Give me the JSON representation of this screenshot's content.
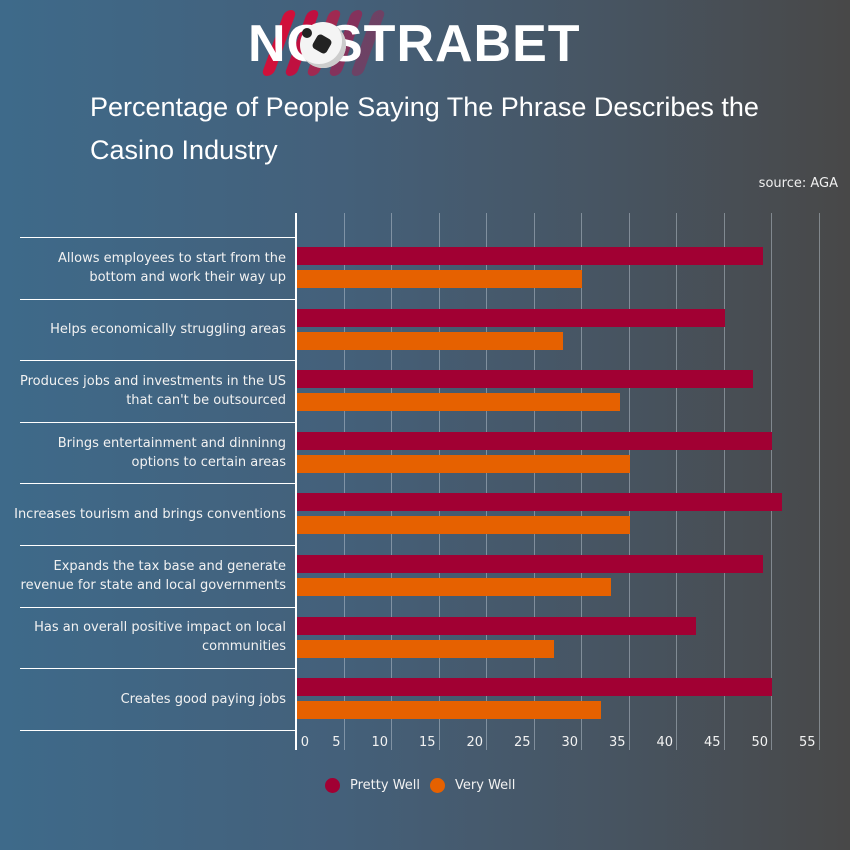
{
  "brand": {
    "logo_text": "NOSTRABET"
  },
  "header": {
    "title": "Percentage of People Saying The Phrase Describes the Casino Industry",
    "source": "source: AGA"
  },
  "colors": {
    "pretty_well": "#a10033",
    "very_well": "#e66100",
    "axis": "#ffffff"
  },
  "legend": [
    {
      "label": "Pretty Well",
      "color": "#a10033"
    },
    {
      "label": "Very Well",
      "color": "#e66100"
    }
  ],
  "chart_data": {
    "type": "bar",
    "orientation": "horizontal",
    "title": "Percentage of People Saying The Phrase Describes the Casino Industry",
    "subtitle": "source: AGA",
    "xlabel": "",
    "ylabel": "",
    "xlim": [
      0,
      55
    ],
    "x_ticks": [
      0,
      5,
      10,
      15,
      20,
      25,
      30,
      35,
      40,
      45,
      50,
      55
    ],
    "grid": true,
    "legend_position": "bottom",
    "categories": [
      "Allows employees to start from the bottom and work their way up",
      "Helps economically struggling areas",
      "Produces jobs and investments in the US that can't be outsourced",
      "Brings entertainment and dinninng options to certain areas",
      "Increases tourism and brings conventions",
      "Expands the tax base and generate revenue for state and local governments",
      "Has an overall positive impact on local communities",
      "Creates good paying jobs"
    ],
    "series": [
      {
        "name": "Pretty Well",
        "color": "#a10033",
        "values": [
          49,
          45,
          48,
          50,
          51,
          49,
          42,
          50
        ]
      },
      {
        "name": "Very Well",
        "color": "#e66100",
        "values": [
          30,
          28,
          34,
          35,
          35,
          33,
          27,
          32
        ]
      }
    ]
  },
  "category_lines": [
    [
      "Allows employees to start from the",
      "bottom and work their way up"
    ],
    [
      "Helps economically struggling areas"
    ],
    [
      "Produces jobs and investments in the US",
      "that can't be outsourced"
    ],
    [
      "Brings entertainment and dinninng",
      "options to certain areas"
    ],
    [
      "Increases tourism and brings conventions"
    ],
    [
      "Expands the tax base and generate",
      "revenue for state and local governments"
    ],
    [
      "Has an overall positive impact on local",
      "communities"
    ],
    [
      "Creates good paying jobs"
    ]
  ]
}
